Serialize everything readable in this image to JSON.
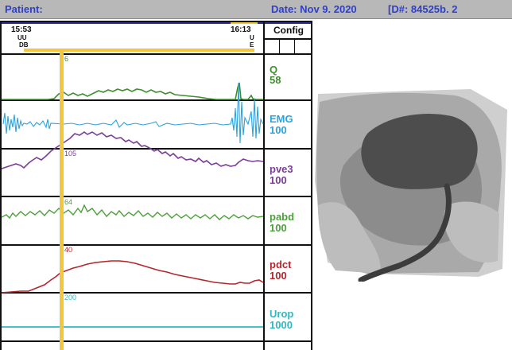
{
  "header": {
    "patient_label": "Patient:",
    "date_label": "Date: Nov  9.  2020",
    "id_label": "[D#: 84525b. 2"
  },
  "timeline": {
    "start_time": "15:53",
    "start_marker_1": "UU",
    "start_marker_2": "DB",
    "end_time": "16:13",
    "end_marker_1": "U",
    "end_marker_2": "E"
  },
  "config_label": "Config",
  "cursor_color": "#f2c83a",
  "channels": [
    {
      "id": "q",
      "name": "Q",
      "scale": "58",
      "cursor_value": "6",
      "color": "#3f8e2f"
    },
    {
      "id": "emg",
      "name": "EMG",
      "scale": "100",
      "cursor_value": "",
      "color": "#2ba3dc"
    },
    {
      "id": "pve3",
      "name": "pve3",
      "scale": "100",
      "cursor_value": "105",
      "color": "#7a3d98"
    },
    {
      "id": "pabd",
      "name": "pabd",
      "scale": "100",
      "cursor_value": "64",
      "color": "#4ca03a"
    },
    {
      "id": "pdct",
      "name": "pdct",
      "scale": "100",
      "cursor_value": "40",
      "color": "#b3262c"
    },
    {
      "id": "urop",
      "name": "Urop",
      "scale": "1000",
      "cursor_value": "200",
      "color": "#2fb8bf"
    }
  ]
}
